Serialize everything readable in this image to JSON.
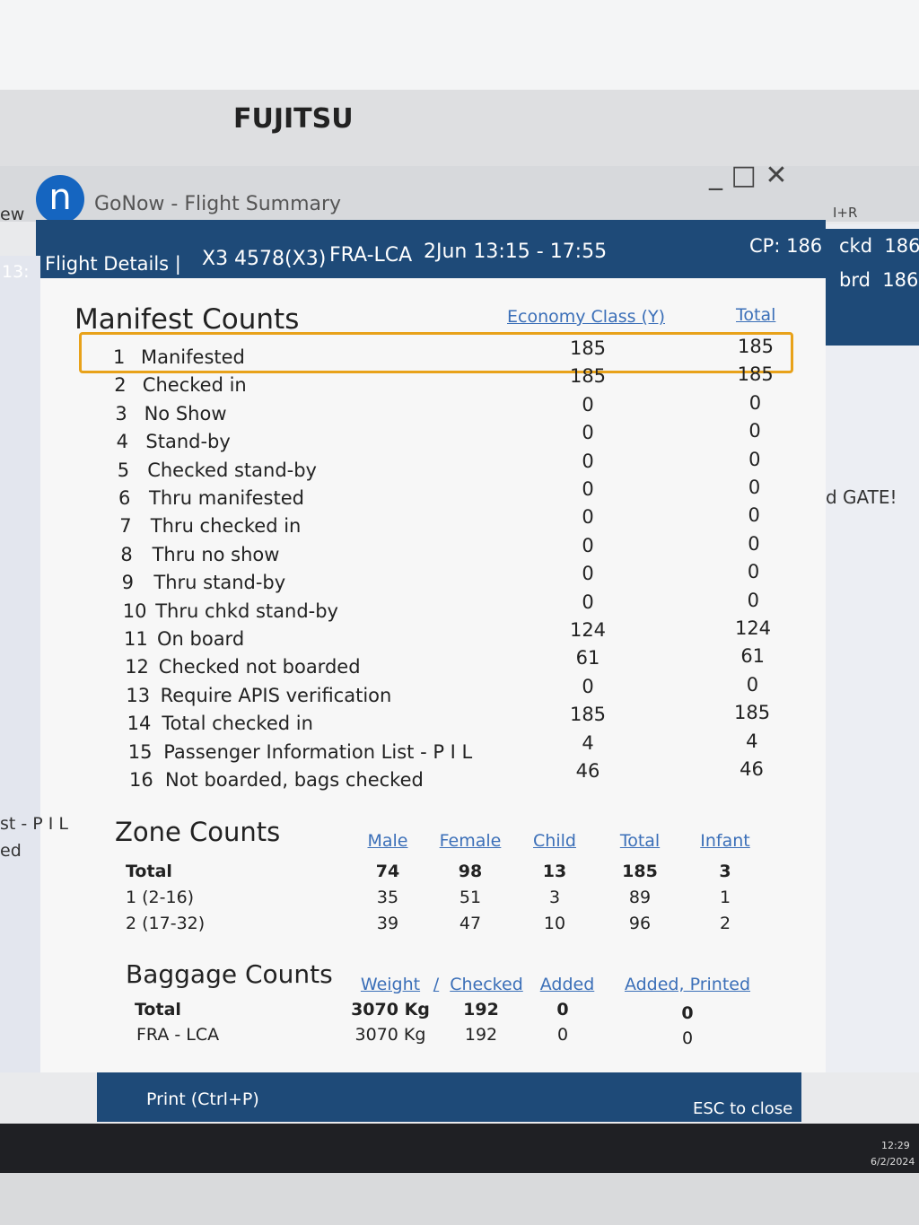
{
  "monitor": {
    "brand": "FUJITSU"
  },
  "window": {
    "title": "GoNow - Flight Summary"
  },
  "header": {
    "section": "Flight Details |",
    "flight": "X3 4578(X3)",
    "route": "FRA-LCA",
    "schedule": "2Jun 13:15 - 17:55",
    "cp": "CP: 186"
  },
  "background": {
    "left_fragments": [
      "ew",
      "13:",
      "st - P I L",
      "ed"
    ],
    "right_fragments": [
      "I+R",
      "ckd  186",
      "brd  186",
      "d GATE!"
    ]
  },
  "manifest": {
    "title": "Manifest Counts",
    "columns": [
      "Economy Class (Y)",
      "Total"
    ],
    "rows": [
      {
        "num": 1,
        "label": "Manifested",
        "economy": 185,
        "total": 185
      },
      {
        "num": 2,
        "label": "Checked in",
        "economy": 185,
        "total": 185
      },
      {
        "num": 3,
        "label": "No Show",
        "economy": 0,
        "total": 0
      },
      {
        "num": 4,
        "label": "Stand-by",
        "economy": 0,
        "total": 0
      },
      {
        "num": 5,
        "label": "Checked stand-by",
        "economy": 0,
        "total": 0
      },
      {
        "num": 6,
        "label": "Thru manifested",
        "economy": 0,
        "total": 0
      },
      {
        "num": 7,
        "label": "Thru checked in",
        "economy": 0,
        "total": 0
      },
      {
        "num": 8,
        "label": "Thru no show",
        "economy": 0,
        "total": 0
      },
      {
        "num": 9,
        "label": "Thru stand-by",
        "economy": 0,
        "total": 0
      },
      {
        "num": 10,
        "label": "Thru chkd stand-by",
        "economy": 0,
        "total": 0
      },
      {
        "num": 11,
        "label": "On board",
        "economy": 124,
        "total": 124
      },
      {
        "num": 12,
        "label": "Checked not boarded",
        "economy": 61,
        "total": 61
      },
      {
        "num": 13,
        "label": "Require APIS verification",
        "economy": 0,
        "total": 0
      },
      {
        "num": 14,
        "label": "Total checked in",
        "economy": 185,
        "total": 185
      },
      {
        "num": 15,
        "label": "Passenger Information List - P I L",
        "economy": 4,
        "total": 4
      },
      {
        "num": 16,
        "label": "Not boarded, bags checked",
        "economy": 46,
        "total": 46
      }
    ]
  },
  "zone": {
    "title": "Zone Counts",
    "columns": [
      "Male",
      "Female",
      "Child",
      "Total",
      "Infant"
    ],
    "rows": [
      {
        "label": "Total",
        "values": [
          74,
          98,
          13,
          185,
          3
        ]
      },
      {
        "label": "1 (2-16)",
        "values": [
          35,
          51,
          3,
          89,
          1
        ]
      },
      {
        "label": "2 (17-32)",
        "values": [
          39,
          47,
          10,
          96,
          2
        ]
      }
    ]
  },
  "baggage": {
    "title": "Baggage Counts",
    "columns": [
      "Weight",
      "/",
      "Checked",
      "Added",
      "Added, Printed"
    ],
    "rows": [
      {
        "label": "Total",
        "weight": "3070 Kg",
        "checked": 192,
        "added": 0,
        "added_printed": 0
      },
      {
        "label": "FRA - LCA",
        "weight": "3070 Kg",
        "checked": 192,
        "added": 0,
        "added_printed": 0
      }
    ]
  },
  "footer": {
    "print": "Print (Ctrl+P)",
    "close": "ESC to close"
  },
  "taskbar": {
    "time": "12:29",
    "date": "6/2/2024"
  }
}
